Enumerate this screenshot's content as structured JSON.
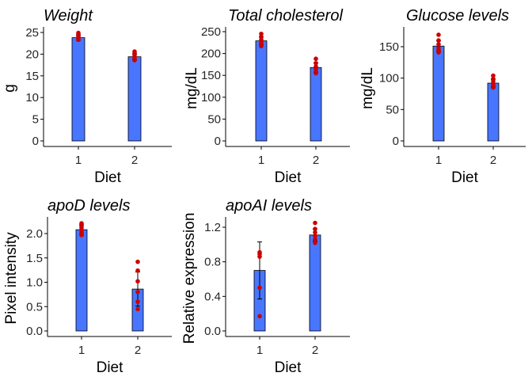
{
  "colors": {
    "bar": "#4876FF",
    "point": "#CC0000",
    "axis": "#000000"
  },
  "chart_data": [
    {
      "type": "bar",
      "title": "Weight",
      "xlabel": "Diet",
      "ylabel": "g",
      "categories": [
        "1",
        "2"
      ],
      "values": [
        23.8,
        19.4
      ],
      "error": [
        0.6,
        0.7
      ],
      "points": [
        [
          24.9,
          24.6,
          24.2,
          23.9,
          23.6,
          23.3
        ],
        [
          20.6,
          20.2,
          19.8,
          19.3,
          18.9,
          18.6
        ]
      ],
      "ylim": [
        0,
        25
      ],
      "yticks": [
        0,
        5,
        10,
        15,
        20,
        25
      ],
      "ytick_labels": [
        "0",
        "5",
        "10",
        "15",
        "20",
        "25"
      ]
    },
    {
      "type": "bar",
      "title": "Total cholesterol",
      "xlabel": "Diet",
      "ylabel": "mg/dL",
      "categories": [
        "1",
        "2"
      ],
      "values": [
        229,
        168
      ],
      "error": [
        9,
        11
      ],
      "points": [
        [
          245,
          238,
          232,
          226,
          221,
          217
        ],
        [
          188,
          178,
          170,
          164,
          158,
          155
        ]
      ],
      "ylim": [
        0,
        250
      ],
      "yticks": [
        0,
        50,
        100,
        150,
        200,
        250
      ],
      "ytick_labels": [
        "0",
        "50",
        "100",
        "150",
        "200",
        "250"
      ]
    },
    {
      "type": "bar",
      "title": "Glucose levels",
      "xlabel": "Diet",
      "ylabel": "mg/dL",
      "categories": [
        "1",
        "2"
      ],
      "values": [
        151,
        92
      ],
      "error": [
        8,
        6
      ],
      "points": [
        [
          169,
          160,
          154,
          148,
          144,
          141
        ],
        [
          104,
          99,
          95,
          91,
          88,
          85
        ]
      ],
      "ylim": [
        0,
        150
      ],
      "yticks": [
        0,
        50,
        100,
        150
      ],
      "ytick_labels": [
        "0",
        "50",
        "100",
        "150"
      ]
    },
    {
      "type": "bar",
      "title": "apoD levels",
      "xlabel": "Diet",
      "ylabel": "Pixel intensity",
      "categories": [
        "1",
        "2"
      ],
      "values": [
        2.08,
        0.86
      ],
      "error": [
        0.1,
        0.35
      ],
      "points": [
        [
          2.21,
          2.16,
          2.12,
          2.07,
          2.02,
          1.97
        ],
        [
          1.42,
          1.24,
          1.02,
          0.8,
          0.6,
          0.45
        ]
      ],
      "ylim": [
        0,
        2.0
      ],
      "yticks": [
        0,
        0.5,
        1.0,
        1.5,
        2.0
      ],
      "ytick_labels": [
        "0.0",
        "0.5",
        "1.0",
        "1.5",
        "2.0"
      ]
    },
    {
      "type": "bar",
      "title": "apoAI levels",
      "xlabel": "Diet",
      "ylabel": "Relative expression",
      "categories": [
        "1",
        "2"
      ],
      "values": [
        0.7,
        1.11
      ],
      "error": [
        0.33,
        0.07
      ],
      "points": [
        [
          0.91,
          0.89,
          0.86,
          0.5,
          0.17
        ],
        [
          1.25,
          1.18,
          1.14,
          1.1,
          1.06,
          1.02
        ]
      ],
      "ylim": [
        0,
        1.2
      ],
      "yticks": [
        0,
        0.4,
        0.8,
        1.2
      ],
      "ytick_labels": [
        "0.0",
        "0.4",
        "0.8",
        "1.2"
      ]
    }
  ]
}
